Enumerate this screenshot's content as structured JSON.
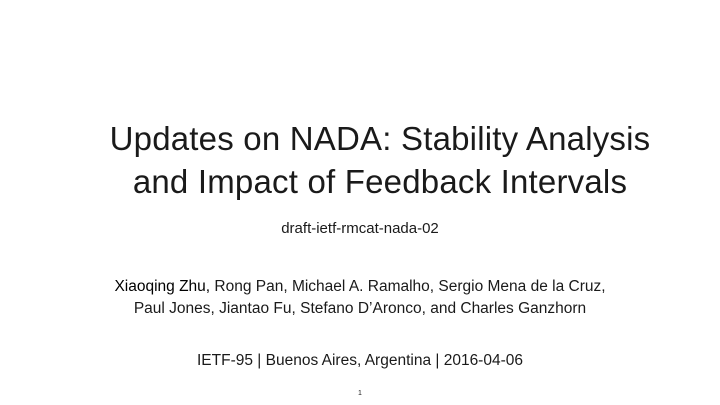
{
  "slide": {
    "title_line1": "Updates on NADA: Stability Analysis",
    "title_line2": "and Impact of Feedback Intervals",
    "subtitle": "draft-ietf-rmcat-nada-02",
    "authors": {
      "presenter": "Xiaoqing Zhu,",
      "line1_rest": " Rong Pan, Michael A. Ramalho, Sergio Mena de la Cruz,",
      "line2": "Paul Jones, Jiantao Fu, Stefano D’Aronco, and Charles Ganzhorn"
    },
    "venue": "IETF-95 | Buenos Aires, Argentina | 2016-04-06",
    "page_number": "1"
  }
}
